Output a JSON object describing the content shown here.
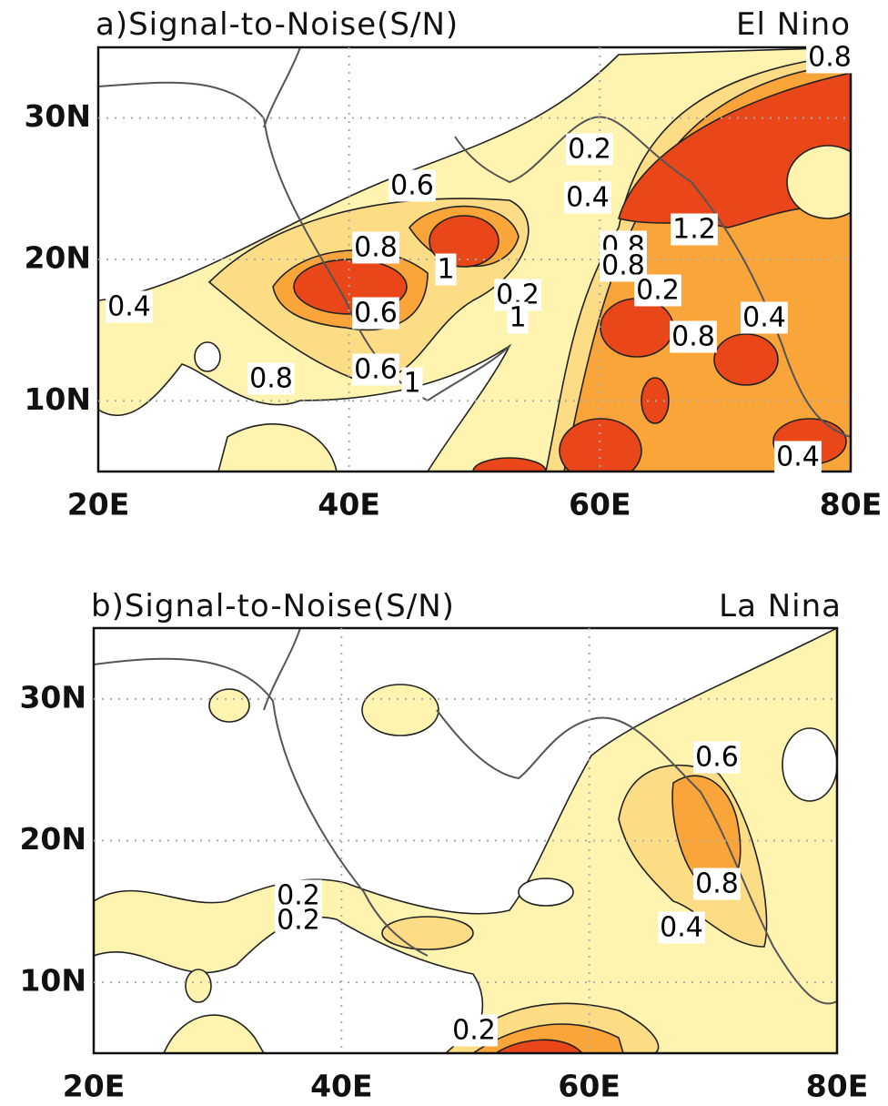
{
  "panels": [
    {
      "title": "a)Signal-to-Noise(S/N)",
      "subtitle": "El Nino",
      "lon_range": [
        20,
        80
      ],
      "lat_range": [
        5,
        35
      ],
      "lon_ticks": [
        {
          "value": 20,
          "label": "20E"
        },
        {
          "value": 40,
          "label": "40E"
        },
        {
          "value": 60,
          "label": "60E"
        },
        {
          "value": 80,
          "label": "80E"
        }
      ],
      "lat_ticks": [
        {
          "value": 30,
          "label": "30N"
        },
        {
          "value": 20,
          "label": "20N"
        },
        {
          "value": 10,
          "label": "10N"
        }
      ],
      "contour_labels": [
        0.8,
        0.2,
        0.6,
        0.4,
        1.2,
        0.8,
        1,
        0.8,
        0.8,
        0.2,
        0.4,
        0.2,
        1,
        0.6,
        0.8,
        0.4,
        0.8,
        0.6,
        1,
        0.4
      ]
    },
    {
      "title": "b)Signal-to-Noise(S/N)",
      "subtitle": "La Nina",
      "lon_range": [
        20,
        80
      ],
      "lat_range": [
        5,
        35
      ],
      "lon_ticks": [
        {
          "value": 20,
          "label": "20E"
        },
        {
          "value": 40,
          "label": "40E"
        },
        {
          "value": 60,
          "label": "60E"
        },
        {
          "value": 80,
          "label": "80E"
        }
      ],
      "lat_ticks": [
        {
          "value": 30,
          "label": "30N"
        },
        {
          "value": 20,
          "label": "20N"
        },
        {
          "value": 10,
          "label": "10N"
        }
      ],
      "contour_labels": [
        0.6,
        0.8,
        0.4,
        0.2,
        0.2,
        0.2
      ]
    }
  ]
}
